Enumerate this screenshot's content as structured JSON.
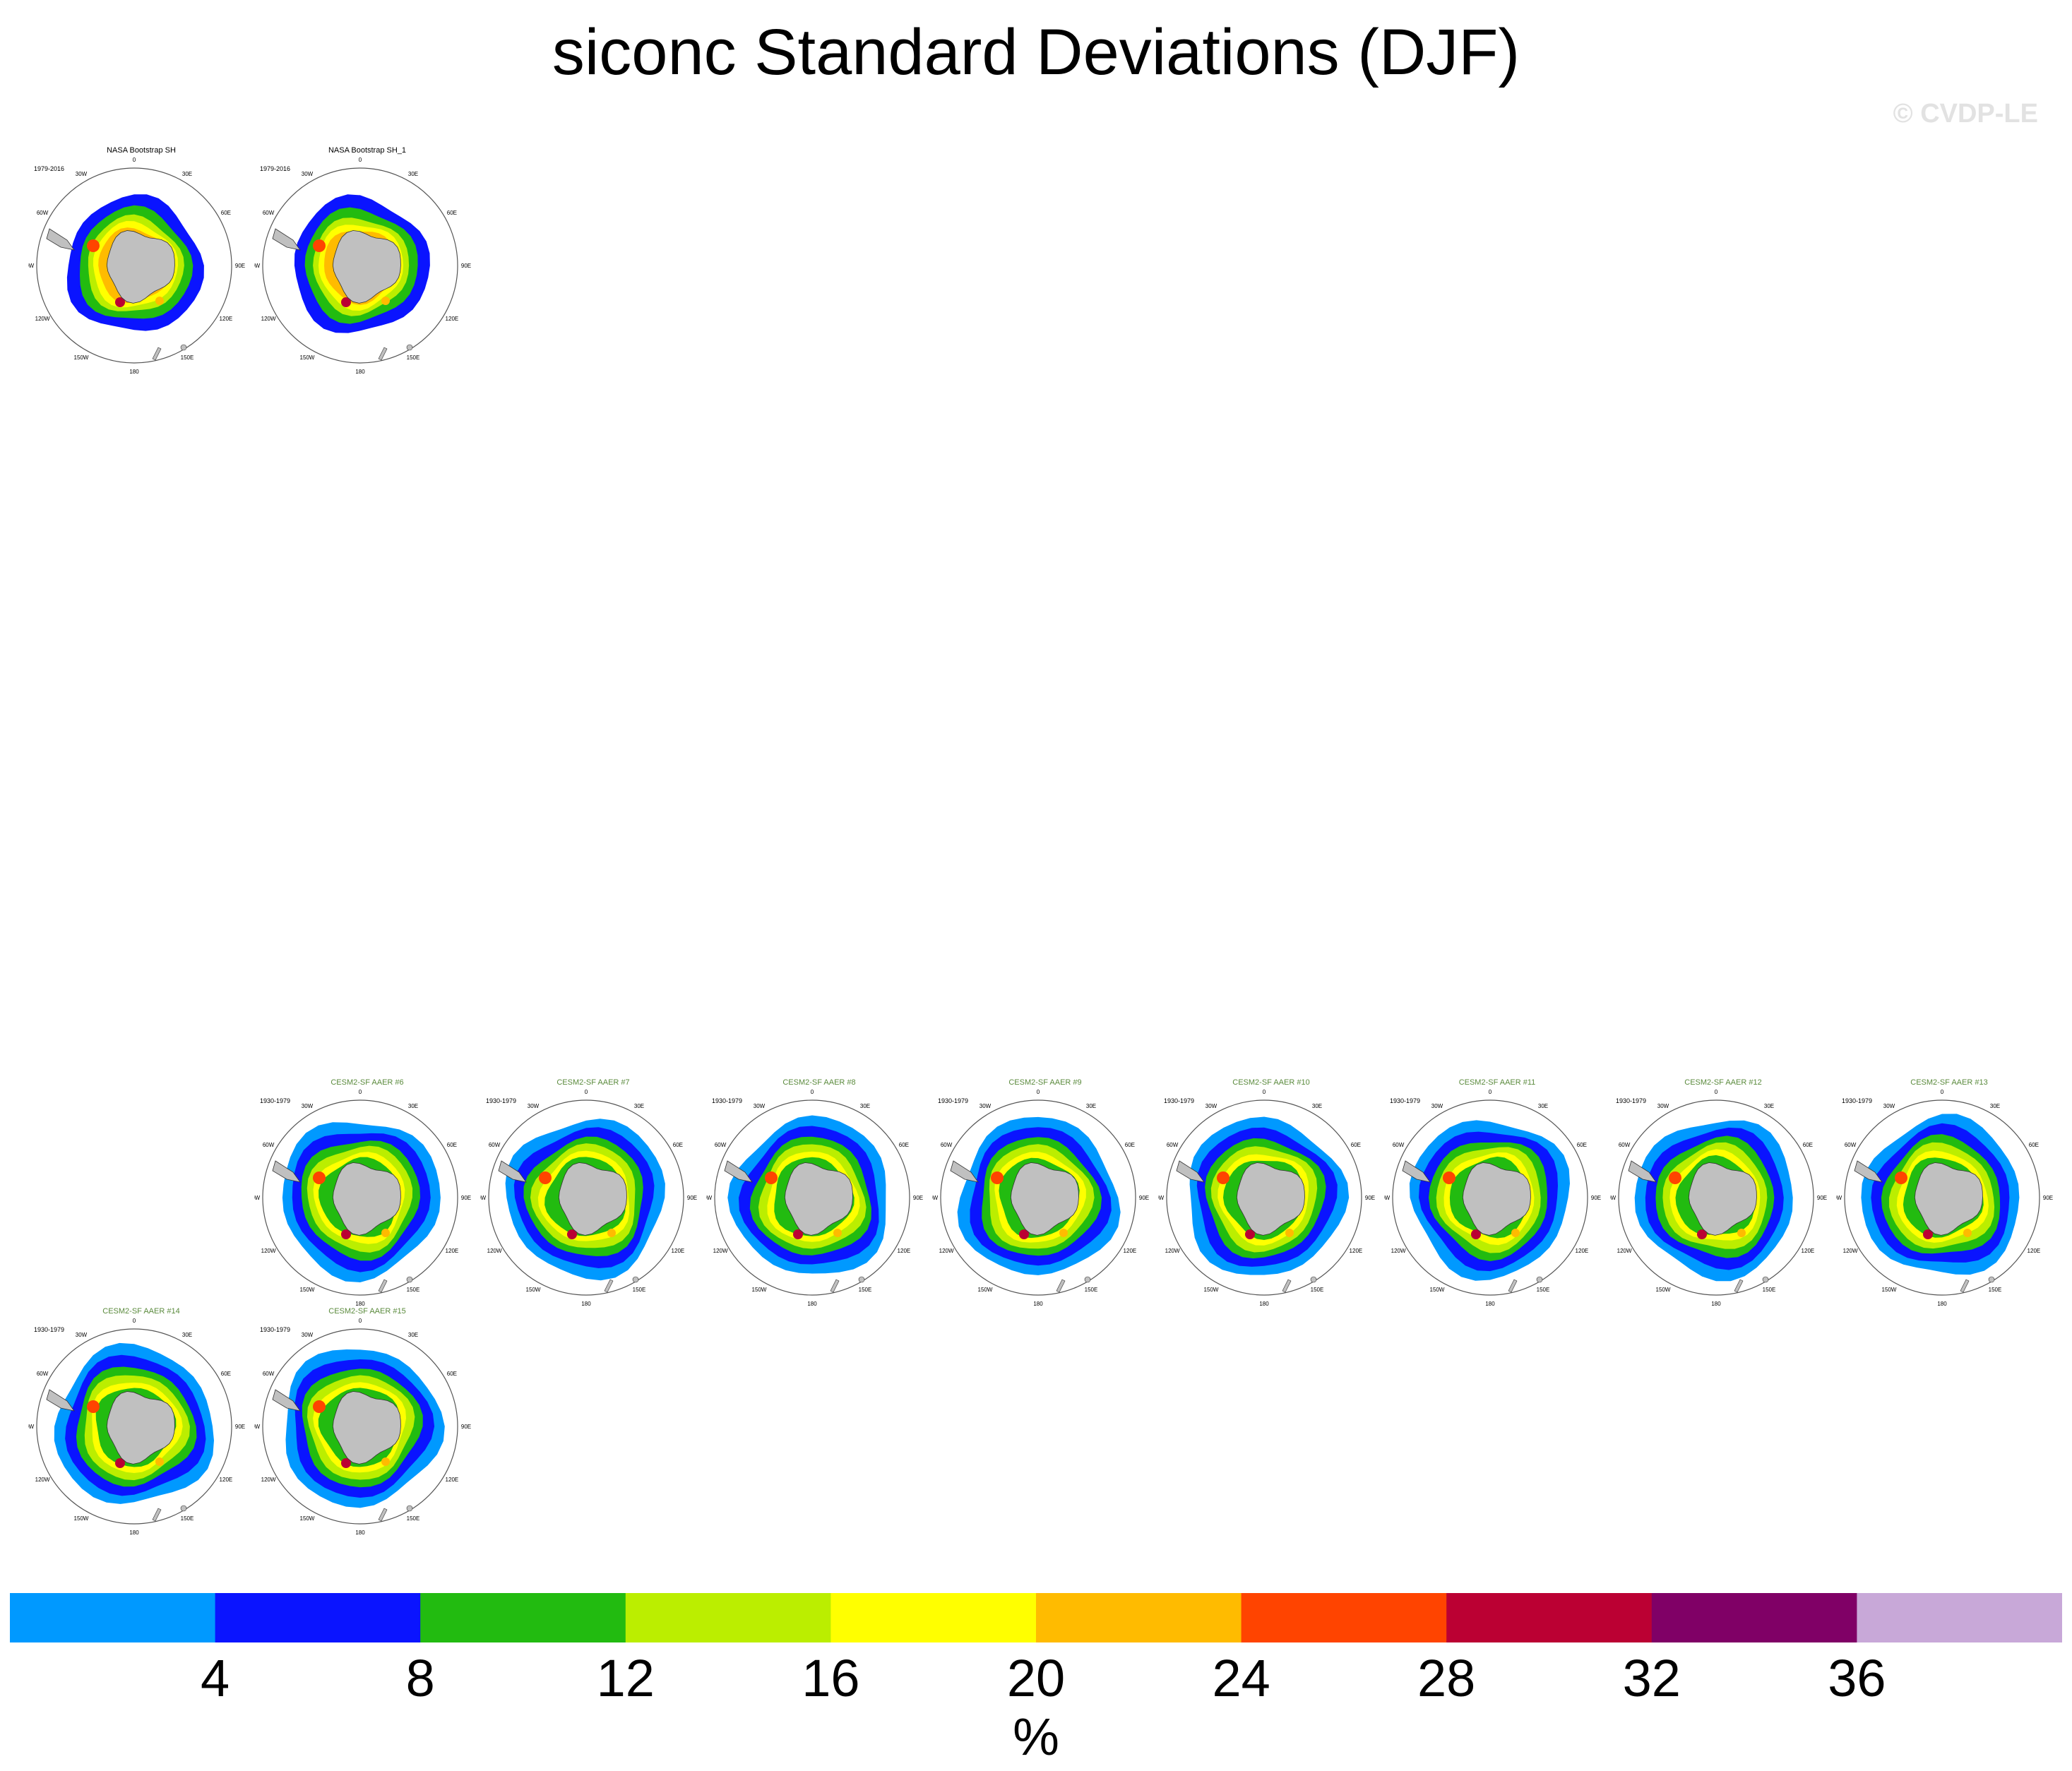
{
  "title": "siconc Standard Deviations (DJF)",
  "watermark": "© CVDP-LE",
  "colors": {
    "model_title": "#5a8a3c",
    "land": "#c0c0c0",
    "levels": [
      "#0099ff",
      "#0a14ff",
      "#22bb10",
      "#bbee00",
      "#ffff00",
      "#ffbb00",
      "#ff4400",
      "#bb0033",
      "#800066",
      "#c8a8d8"
    ]
  },
  "chart_data": {
    "type": "heatmap",
    "projection": "south polar stereographic",
    "variable": "siconc",
    "season": "DJF",
    "units": "%",
    "contour_levels": [
      4,
      8,
      12,
      16,
      20,
      24,
      28,
      32,
      36
    ],
    "colorbar_tick_labels": [
      "4",
      "8",
      "12",
      "16",
      "20",
      "24",
      "28",
      "32",
      "36"
    ],
    "map_labels": [
      "0",
      "30E",
      "60E",
      "90E",
      "120E",
      "150E",
      "180",
      "150W",
      "120W",
      "90W",
      "60W",
      "30W"
    ],
    "panels": [
      {
        "title": "NASA Bootstrap SH",
        "subtitle": "1979-2016",
        "kind": "obs",
        "row": 0,
        "col": 0
      },
      {
        "title": "NASA Bootstrap SH_1",
        "subtitle": "1979-2016",
        "kind": "obs",
        "row": 0,
        "col": 1
      },
      {
        "title": "CESM2-SF AAER #6",
        "subtitle": "1930-1979",
        "kind": "model",
        "row": 1,
        "col": 1
      },
      {
        "title": "CESM2-SF AAER #7",
        "subtitle": "1930-1979",
        "kind": "model",
        "row": 1,
        "col": 2
      },
      {
        "title": "CESM2-SF AAER #8",
        "subtitle": "1930-1979",
        "kind": "model",
        "row": 1,
        "col": 3
      },
      {
        "title": "CESM2-SF AAER #9",
        "subtitle": "1930-1979",
        "kind": "model",
        "row": 1,
        "col": 4
      },
      {
        "title": "CESM2-SF AAER #10",
        "subtitle": "1930-1979",
        "kind": "model",
        "row": 1,
        "col": 5
      },
      {
        "title": "CESM2-SF AAER #11",
        "subtitle": "1930-1979",
        "kind": "model",
        "row": 1,
        "col": 6
      },
      {
        "title": "CESM2-SF AAER #12",
        "subtitle": "1930-1979",
        "kind": "model",
        "row": 1,
        "col": 7
      },
      {
        "title": "CESM2-SF AAER #13",
        "subtitle": "1930-1979",
        "kind": "model",
        "row": 1,
        "col": 8
      },
      {
        "title": "CESM2-SF AAER #14",
        "subtitle": "1930-1979",
        "kind": "model",
        "row": 2,
        "col": 0
      },
      {
        "title": "CESM2-SF AAER #15",
        "subtitle": "1930-1979",
        "kind": "model",
        "row": 2,
        "col": 1
      }
    ]
  }
}
